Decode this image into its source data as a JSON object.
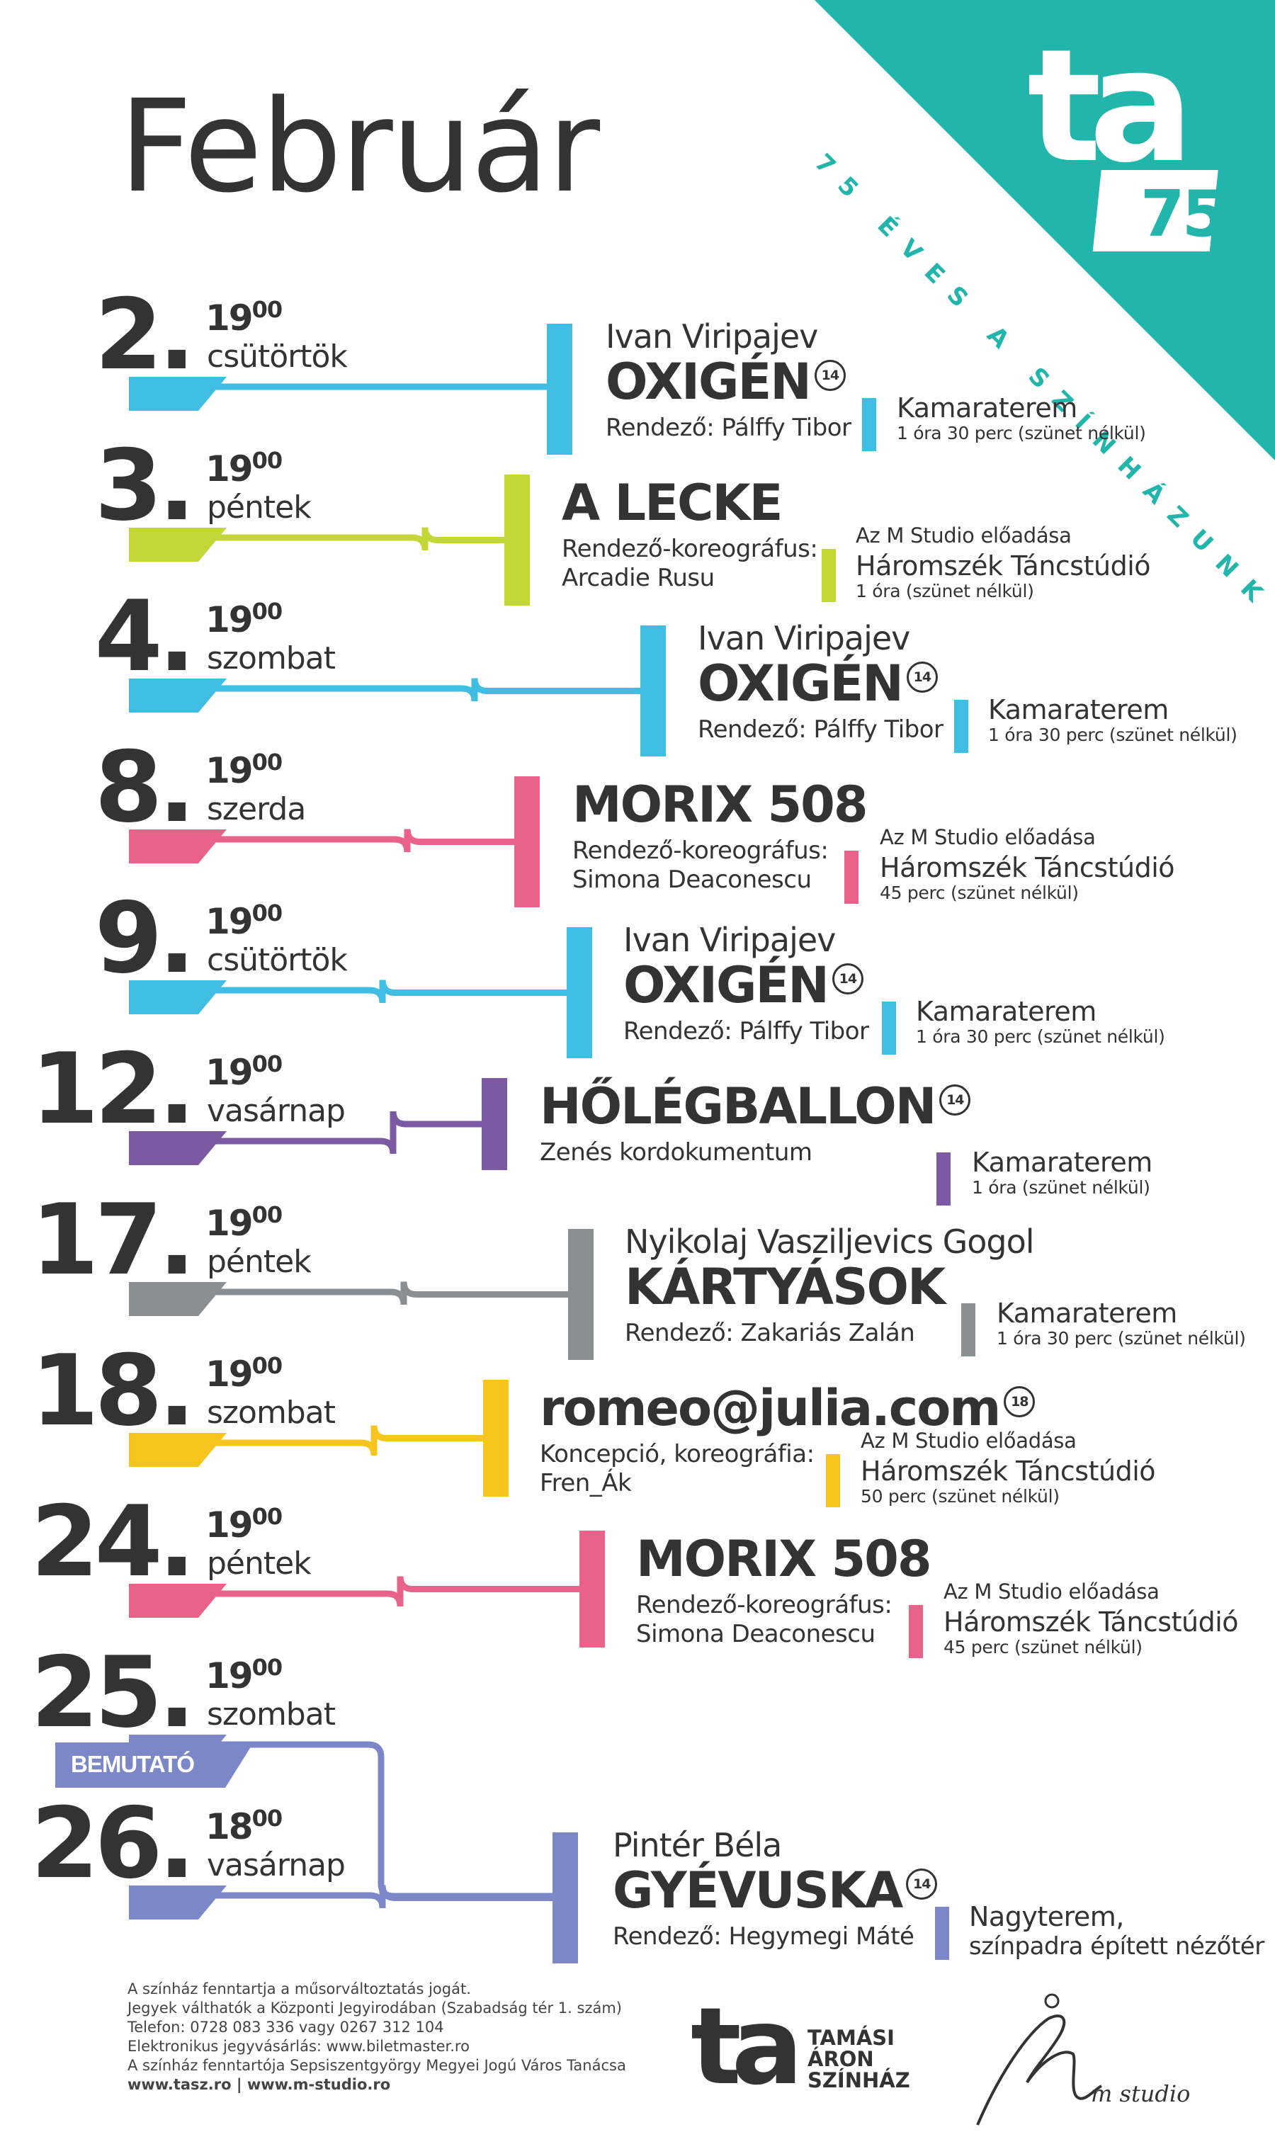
{
  "header": {
    "month": "Február",
    "anniversary_text": "75 ÉVES A SZÍNHÁZUNK",
    "logo_text": "ta",
    "logo_number": "75"
  },
  "colors": {
    "teal": "#21b5ab",
    "cyan": "#3fbde2",
    "lime": "#c5d637",
    "pink": "#e8628a",
    "purple": "#7b5aa3",
    "gray": "#8a8f92",
    "yellow": "#f7c51e",
    "periwinkle": "#7b87c6"
  },
  "events": [
    {
      "day": "2.",
      "hour": "19",
      "minutes": "00",
      "weekday": "csütörtök",
      "color": "#3fbde2",
      "author": "Ivan Viripajev",
      "title": "OXIGÉN",
      "rating": "14",
      "director": [
        "Rendező: Pálffy Tibor"
      ],
      "venue_top": "",
      "venue": "Kamaraterem",
      "venue_sub": "1 óra 30 perc (szünet nélkül)"
    },
    {
      "day": "3.",
      "hour": "19",
      "minutes": "00",
      "weekday": "péntek",
      "color": "#c5d637",
      "author": "",
      "title": "A LECKE",
      "rating": "",
      "director": [
        "Rendező-koreográfus:",
        "Arcadie Rusu"
      ],
      "venue_top": "Az M Studio előadása",
      "venue": "Háromszék Táncstúdió",
      "venue_sub": "1 óra (szünet nélkül)"
    },
    {
      "day": "4.",
      "hour": "19",
      "minutes": "00",
      "weekday": "szombat",
      "color": "#3fbde2",
      "author": "Ivan Viripajev",
      "title": "OXIGÉN",
      "rating": "14",
      "director": [
        "Rendező: Pálffy Tibor"
      ],
      "venue_top": "",
      "venue": "Kamaraterem",
      "venue_sub": "1 óra 30 perc (szünet nélkül)"
    },
    {
      "day": "8.",
      "hour": "19",
      "minutes": "00",
      "weekday": "szerda",
      "color": "#e8628a",
      "author": "",
      "title": "MORIX 508",
      "rating": "",
      "director": [
        "Rendező-koreográfus:",
        "Simona Deaconescu"
      ],
      "venue_top": "Az M Studio előadása",
      "venue": "Háromszék Táncstúdió",
      "venue_sub": "45 perc (szünet nélkül)"
    },
    {
      "day": "9.",
      "hour": "19",
      "minutes": "00",
      "weekday": "csütörtök",
      "color": "#3fbde2",
      "author": "Ivan Viripajev",
      "title": "OXIGÉN",
      "rating": "14",
      "director": [
        "Rendező: Pálffy Tibor"
      ],
      "venue_top": "",
      "venue": "Kamaraterem",
      "venue_sub": "1 óra 30 perc (szünet nélkül)"
    },
    {
      "day": "12.",
      "hour": "19",
      "minutes": "00",
      "weekday": "vasárnap",
      "color": "#7b5aa3",
      "author": "",
      "title": "HŐLÉGBALLON",
      "rating": "14",
      "director": [
        "Zenés kordokumentum"
      ],
      "venue_top": "",
      "venue": "Kamaraterem",
      "venue_sub": "1 óra (szünet nélkül)"
    },
    {
      "day": "17.",
      "hour": "19",
      "minutes": "00",
      "weekday": "péntek",
      "color": "#8a8f92",
      "author": "Nyikolaj Vasziljevics Gogol",
      "title": "KÁRTYÁSOK",
      "rating": "",
      "director": [
        "Rendező: Zakariás Zalán"
      ],
      "venue_top": "",
      "venue": "Kamaraterem",
      "venue_sub": "1 óra 30 perc (szünet nélkül)"
    },
    {
      "day": "18.",
      "hour": "19",
      "minutes": "00",
      "weekday": "szombat",
      "color": "#f7c51e",
      "author": "",
      "title": "romeo@julia.com",
      "rating": "18",
      "director": [
        "Koncepció, koreográfia:",
        "Fren_Ák"
      ],
      "venue_top": "Az M Studio előadása",
      "venue": "Háromszék Táncstúdió",
      "venue_sub": "50 perc (szünet nélkül)"
    },
    {
      "day": "24.",
      "hour": "19",
      "minutes": "00",
      "weekday": "péntek",
      "color": "#e8628a",
      "author": "",
      "title": "MORIX 508",
      "rating": "",
      "director": [
        "Rendező-koreográfus:",
        "Simona Deaconescu"
      ],
      "venue_top": "Az M Studio előadása",
      "venue": "Háromszék Táncstúdió",
      "venue_sub": "45 perc (szünet nélkül)"
    },
    {
      "day": "25.",
      "hour": "19",
      "minutes": "00",
      "weekday": "szombat",
      "color": "#7b87c6",
      "author": "",
      "title": "",
      "rating": "",
      "director": [],
      "venue_top": "",
      "venue": "",
      "venue_sub": ""
    },
    {
      "day": "26.",
      "hour": "18",
      "minutes": "00",
      "weekday": "vasárnap",
      "color": "#7b87c6",
      "author": "Pintér Béla",
      "title": "GYÉVUSKA",
      "rating": "14",
      "director": [
        "Rendező: Hegymegi Máté"
      ],
      "venue_top": "",
      "venue": "Nagyterem,",
      "venue_sub": "színpadra épített nézőtér"
    }
  ],
  "premiere_tag": "BEMUTATÓ",
  "footer": {
    "lines": [
      "A színház fenntartja a műsorváltoztatás jogát.",
      "Jegyek válthatók a Központi Jegyirodában (Szabadság tér 1. szám)",
      "Telefon: 0728 083 336 vagy 0267 312 104",
      "Elektronikus jegyvásárlás: www.biletmaster.ro",
      "A színház fenntartója Sepsiszentgyörgy Megyei Jogú Város Tanácsa",
      "www.tasz.ro | www.m-studio.ro"
    ],
    "logo_mark": "ta",
    "logo_name": [
      "TAMÁSI",
      "ÁRON",
      "SZÍNHÁZ"
    ],
    "studio_logo": "m studio"
  }
}
